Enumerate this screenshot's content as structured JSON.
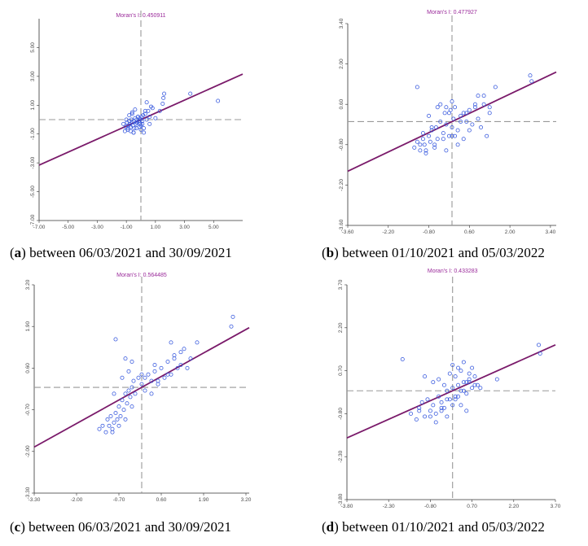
{
  "figure": {
    "panels": [
      {
        "letter": "a",
        "caption_text": " between 06/03/2021 and 30/09/2021",
        "moran_label": "Moran's I: 0.450911"
      },
      {
        "letter": "b",
        "caption_text": " between 01/10/2021 and 05/03/2022",
        "moran_label": "Moran's I: 0.477927"
      },
      {
        "letter": "c",
        "caption_text": " between 06/03/2021 and 30/09/2021",
        "moran_label": "Moran's I: 0.564485"
      },
      {
        "letter": "d",
        "caption_text": " between 01/10/2021 and 05/03/2022",
        "moran_label": "Moran's I: 0.433283"
      }
    ]
  },
  "colors": {
    "regression": "#7a1a6a",
    "points": "#3355dd",
    "frame": "#333333",
    "crosshair": "#999999"
  },
  "chart_data": [
    {
      "type": "scatter",
      "title": "Moran's I: 0.450911",
      "slope": 0.450911,
      "xlim": [
        -7.0,
        7.0
      ],
      "ylim": [
        -7.0,
        7.0
      ],
      "xticks": [
        "-7.00",
        "-5.00",
        "-3.00",
        "-1.00",
        "1.00",
        "3.00",
        "5.00"
      ],
      "xtick_values": [
        -7,
        -5,
        -3,
        -1,
        1,
        3,
        5
      ],
      "yticks": [
        "-7.00",
        "-5.00",
        "-3.00",
        "-1.00",
        "1.00",
        "3.00",
        "5.00"
      ],
      "ytick_values": [
        -7,
        -5,
        -3,
        -1,
        1,
        3,
        5
      ],
      "x": [
        -1.2,
        -1.05,
        -0.95,
        -0.9,
        -0.85,
        -0.8,
        -0.75,
        -0.7,
        -0.65,
        -0.6,
        -0.55,
        -0.5,
        -0.45,
        -0.4,
        -0.35,
        -0.3,
        -0.25,
        -0.2,
        -0.15,
        -0.1,
        -0.05,
        0.0,
        0.05,
        0.1,
        0.15,
        -1.0,
        -0.9,
        -0.7,
        -0.5,
        -0.3,
        -0.1,
        0.1,
        0.3,
        0.5,
        0.7,
        -0.8,
        -0.6,
        -0.4,
        -0.2,
        0.0,
        0.2,
        0.4,
        0.6,
        -1.1,
        -0.5,
        0.0,
        0.4,
        0.8,
        1.5,
        1.55,
        1.6,
        1.3,
        3.4,
        5.3,
        0.2,
        -0.3,
        0.6,
        1.0,
        -0.6,
        0.3
      ],
      "y": [
        -0.3,
        -0.5,
        -0.2,
        -0.6,
        -0.4,
        -0.1,
        -0.3,
        -0.5,
        0.0,
        -0.2,
        -0.4,
        -0.1,
        -0.6,
        0.1,
        -0.3,
        0.0,
        -0.2,
        0.2,
        -0.1,
        0.1,
        -0.3,
        0.0,
        0.2,
        -0.1,
        0.3,
        0.0,
        -0.7,
        -0.8,
        -0.9,
        -0.6,
        -0.5,
        -0.3,
        0.4,
        0.6,
        0.9,
        0.3,
        0.5,
        0.7,
        0.2,
        -0.4,
        -0.6,
        0.0,
        0.2,
        -0.8,
        -0.9,
        -0.7,
        1.2,
        0.8,
        1.1,
        1.5,
        1.8,
        0.6,
        1.8,
        1.3,
        -0.9,
        -0.2,
        -0.3,
        0.1,
        0.4,
        0.6
      ]
    },
    {
      "type": "scatter",
      "title": "Moran's I: 0.477927",
      "slope": 0.477927,
      "xlim": [
        -3.6,
        3.6
      ],
      "ylim": [
        -3.6,
        3.4
      ],
      "xticks": [
        "-3.60",
        "-2.20",
        "-0.80",
        "0.60",
        "2.00",
        "3.40"
      ],
      "xtick_values": [
        -3.6,
        -2.2,
        -0.8,
        0.6,
        2.0,
        3.4
      ],
      "yticks": [
        "-3.60",
        "-2.20",
        "-0.80",
        "0.60",
        "2.00",
        "3.40"
      ],
      "ytick_values": [
        -3.6,
        -2.2,
        -0.8,
        0.6,
        2.0,
        3.4
      ],
      "x": [
        -1.3,
        -1.2,
        -1.1,
        -1.0,
        -0.95,
        -0.9,
        -0.8,
        -0.75,
        -0.7,
        -0.6,
        -0.55,
        -0.5,
        -0.4,
        -0.3,
        -0.25,
        -0.2,
        -0.1,
        -0.05,
        0.0,
        0.05,
        0.1,
        0.2,
        0.3,
        0.4,
        0.5,
        0.6,
        0.7,
        0.8,
        0.9,
        1.0,
        1.1,
        1.2,
        1.3,
        1.5,
        -1.0,
        -0.8,
        -0.6,
        -0.4,
        -0.2,
        0.0,
        0.2,
        0.4,
        0.6,
        0.8,
        -0.9,
        -0.7,
        -0.5,
        -0.3,
        -0.1,
        0.1,
        0.3,
        0.5,
        -1.1,
        -0.2,
        0.0,
        0.9,
        1.1,
        1.3,
        2.7,
        2.75,
        -1.2
      ],
      "y": [
        -0.9,
        -0.7,
        -1.0,
        -0.6,
        -0.8,
        -1.1,
        -0.5,
        -0.7,
        -0.3,
        -0.9,
        -0.2,
        -0.6,
        0.0,
        -0.4,
        0.3,
        -0.1,
        -0.5,
        0.4,
        -0.2,
        0.1,
        0.5,
        -0.3,
        0.2,
        -0.6,
        0.0,
        0.4,
        -0.1,
        0.6,
        0.1,
        -0.2,
        0.9,
        -0.5,
        0.3,
        1.2,
        -0.4,
        0.2,
        -0.8,
        0.6,
        -1.0,
        0.7,
        -0.8,
        0.3,
        -0.3,
        0.5,
        -1.0,
        -0.2,
        0.5,
        -0.6,
        0.3,
        -0.5,
        0.0,
        0.3,
        -0.8,
        0.5,
        -0.5,
        0.9,
        0.6,
        0.5,
        1.6,
        1.4,
        1.2
      ]
    },
    {
      "type": "scatter",
      "title": "Moran's I: 0.564485",
      "slope": 0.564485,
      "xlim": [
        -3.3,
        3.3
      ],
      "ylim": [
        -3.3,
        3.2
      ],
      "xticks": [
        "-3.30",
        "-2.00",
        "-0.70",
        "0.60",
        "1.90",
        "3.20"
      ],
      "xtick_values": [
        -3.3,
        -2.0,
        -0.7,
        0.6,
        1.9,
        3.2
      ],
      "yticks": [
        "-3.30",
        "-2.00",
        "-0.70",
        "0.60",
        "1.90",
        "3.20"
      ],
      "ytick_values": [
        -3.3,
        -2.0,
        -0.7,
        0.6,
        1.9,
        3.2
      ],
      "x": [
        -1.3,
        -1.2,
        -1.1,
        -1.05,
        -1.0,
        -0.95,
        -0.9,
        -0.85,
        -0.8,
        -0.75,
        -0.7,
        -0.65,
        -0.6,
        -0.55,
        -0.5,
        -0.45,
        -0.4,
        -0.35,
        -0.3,
        -0.25,
        -0.2,
        -0.1,
        0.0,
        0.1,
        0.2,
        0.3,
        0.4,
        0.5,
        0.6,
        0.7,
        0.8,
        0.9,
        1.0,
        1.1,
        1.2,
        1.3,
        1.5,
        1.7,
        -0.9,
        -0.7,
        -0.5,
        -0.3,
        -0.8,
        -0.6,
        0.1,
        0.3,
        0.5,
        0.8,
        1.0,
        1.2,
        -0.5,
        -0.3,
        2.8,
        2.75,
        -0.85,
        -0.4,
        0.0,
        0.4,
        0.9,
        1.4
      ],
      "y": [
        -1.3,
        -1.2,
        -1.4,
        -1.0,
        -1.2,
        -0.9,
        -1.3,
        -1.1,
        -0.8,
        -1.0,
        -0.6,
        -0.9,
        -0.4,
        -0.7,
        -0.2,
        -0.5,
        -0.1,
        -0.3,
        0.0,
        0.2,
        -0.2,
        0.3,
        0.1,
        -0.1,
        0.4,
        0.2,
        0.5,
        0.1,
        0.6,
        0.3,
        0.8,
        0.4,
        0.9,
        0.6,
        0.7,
        1.2,
        0.9,
        1.4,
        -1.4,
        -1.2,
        -1.0,
        -0.6,
        1.5,
        0.3,
        0.3,
        -0.2,
        0.2,
        0.4,
        1.0,
        1.1,
        0.9,
        0.8,
        2.2,
        1.9,
        -0.2,
        0.5,
        0.4,
        0.7,
        1.4,
        0.6
      ]
    },
    {
      "type": "scatter",
      "title": "Moran's I: 0.433283",
      "slope": 0.433283,
      "xlim": [
        -3.8,
        3.7
      ],
      "ylim": [
        -3.8,
        3.7
      ],
      "xticks": [
        "-3.80",
        "-2.30",
        "-0.80",
        "0.70",
        "2.20",
        "3.70"
      ],
      "xtick_values": [
        -3.8,
        -2.3,
        -0.8,
        0.7,
        2.2,
        3.7
      ],
      "yticks": [
        "-3.80",
        "-2.30",
        "-0.80",
        "0.70",
        "2.20",
        "3.70"
      ],
      "ytick_values": [
        -3.8,
        -2.3,
        -0.8,
        0.7,
        2.2,
        3.7
      ],
      "x": [
        -1.5,
        -1.3,
        -1.2,
        -1.1,
        -1.0,
        -0.9,
        -0.8,
        -0.7,
        -0.6,
        -0.5,
        -0.4,
        -0.3,
        -0.2,
        -0.1,
        0.0,
        0.1,
        0.2,
        0.3,
        0.4,
        0.5,
        0.6,
        0.7,
        0.8,
        0.9,
        -0.8,
        -0.6,
        -0.4,
        -0.2,
        0.0,
        0.2,
        0.4,
        0.6,
        -0.5,
        -0.3,
        -0.1,
        0.1,
        0.3,
        0.5,
        -0.7,
        0.0,
        0.2,
        0.4,
        0.6,
        0.8,
        -1.8,
        -1.0,
        -0.2,
        0.3,
        0.5,
        1.0,
        1.6,
        3.1,
        3.15,
        0.1,
        -0.4,
        0.7,
        -1.2
      ],
      "y": [
        -0.8,
        -1.0,
        -0.6,
        -0.4,
        -0.9,
        -0.3,
        -0.7,
        -0.5,
        -0.8,
        -0.2,
        -0.4,
        -0.6,
        0.0,
        -0.3,
        0.1,
        -0.2,
        0.2,
        0.0,
        0.3,
        -0.1,
        0.4,
        0.1,
        0.5,
        0.2,
        -0.9,
        -1.1,
        -0.7,
        -0.9,
        -0.5,
        -0.2,
        0.0,
        0.3,
        0.4,
        0.2,
        0.6,
        0.5,
        0.7,
        0.3,
        0.3,
        0.9,
        0.8,
        1.0,
        0.6,
        0.2,
        1.1,
        0.5,
        -0.3,
        -0.5,
        -0.7,
        0.1,
        0.4,
        1.6,
        1.3,
        -0.3,
        -0.6,
        0.8,
        -0.7
      ]
    }
  ]
}
